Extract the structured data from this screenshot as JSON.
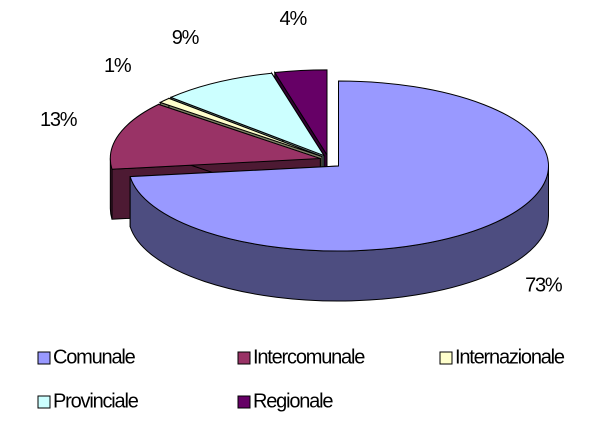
{
  "chart_data": {
    "type": "pie",
    "categories": [
      "Comunale",
      "Intercomunale",
      "Internazionale",
      "Provinciale",
      "Regionale"
    ],
    "values": [
      73,
      13,
      1,
      9,
      4
    ],
    "value_labels": [
      "73%",
      "13%",
      "1%",
      "9%",
      "4%"
    ],
    "colors": [
      "#9999ff",
      "#993366",
      "#ffffcc",
      "#ccffff",
      "#660066"
    ],
    "legend": "bottom"
  }
}
